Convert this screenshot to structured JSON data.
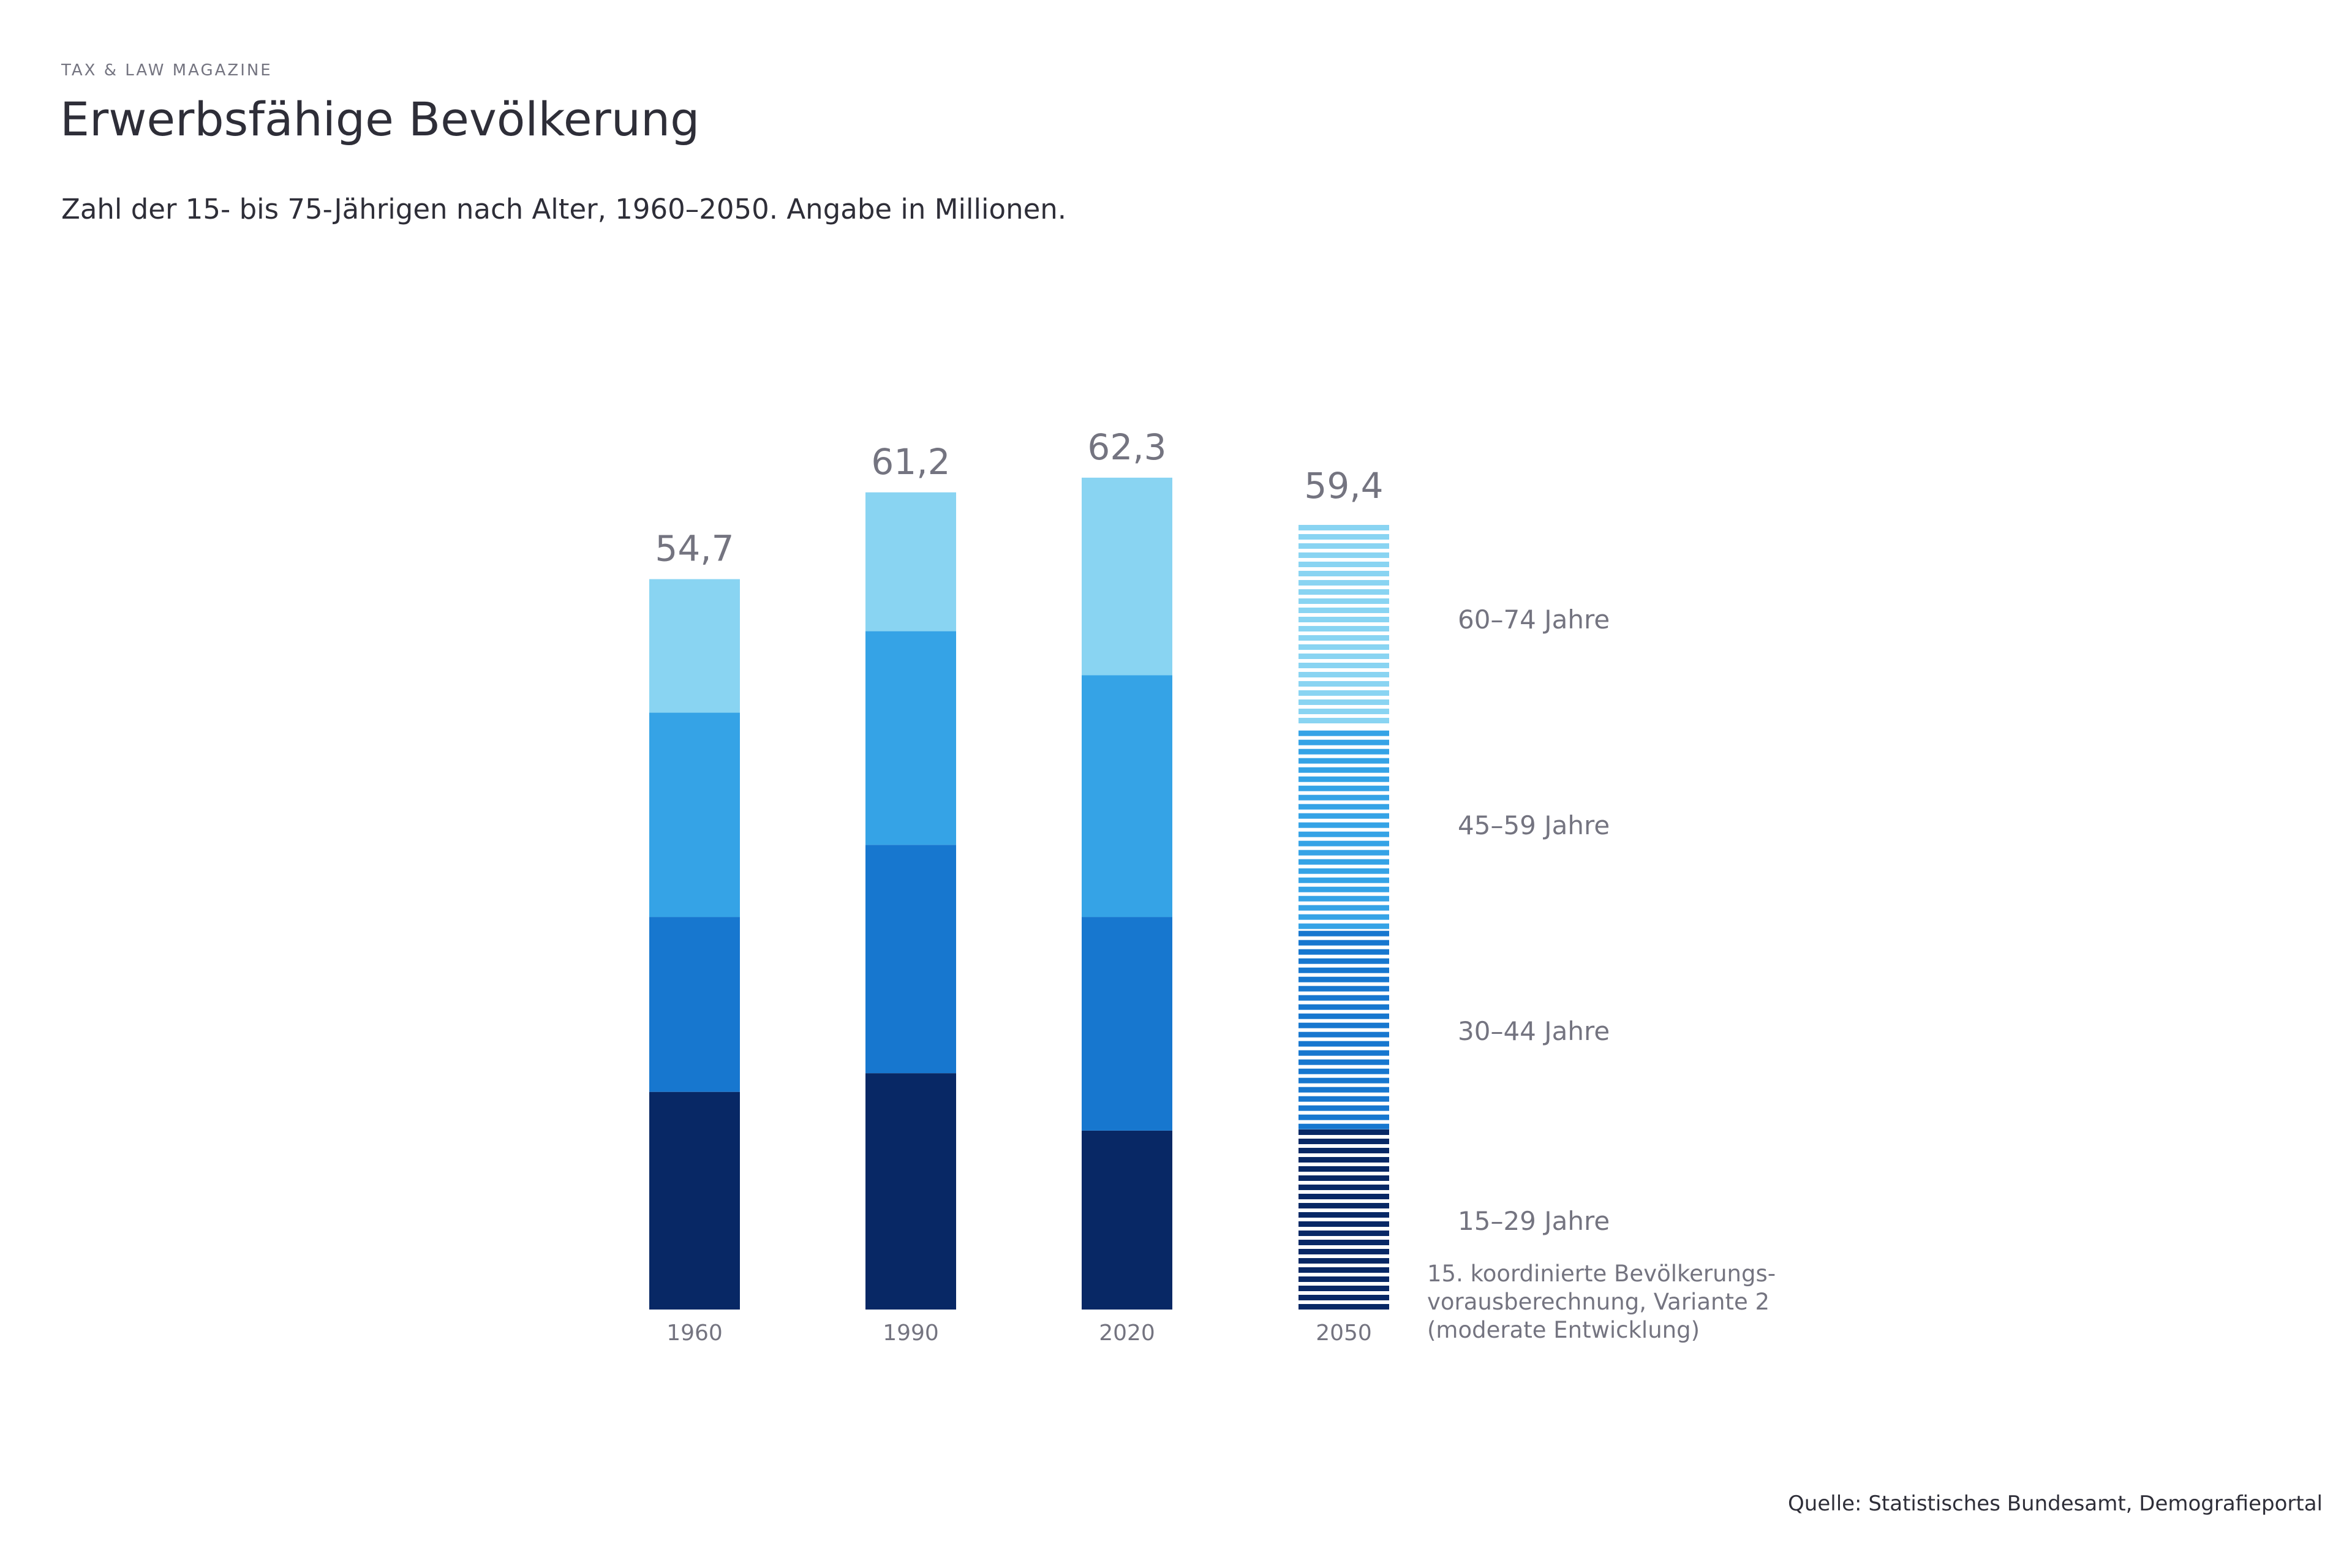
{
  "header": {
    "kicker": "TAX & LAW MAGAZINE",
    "title": "Erwerbsfähige Bevölkerung",
    "subtitle": "Zahl der 15- bis 75-Jährigen nach Alter, 1960–2050. Angabe in Millionen."
  },
  "source": "Quelle: Statistisches Bundesamt, Demografieportal",
  "colors": {
    "15-29": "#082865",
    "30-44": "#1777cf",
    "45-59": "#35a3e6",
    "60-74": "#89d4f2"
  },
  "chart_data": {
    "type": "bar",
    "stacked": true,
    "categories": [
      "1960",
      "1990",
      "2020",
      "2050"
    ],
    "totals": [
      "54,7",
      "61,2",
      "62,3",
      "59,4"
    ],
    "total_values": [
      54.7,
      61.2,
      62.3,
      59.4
    ],
    "series": [
      {
        "name": "15–29 Jahre",
        "key": "15-29",
        "values": [
          16.3,
          17.7,
          13.4,
          13.5
        ]
      },
      {
        "name": "30–44 Jahre",
        "key": "30-44",
        "values": [
          13.1,
          17.1,
          16.0,
          15.0
        ]
      },
      {
        "name": "45–59 Jahre",
        "key": "45-59",
        "values": [
          15.3,
          16.0,
          18.1,
          15.4
        ]
      },
      {
        "name": "60–74 Jahre",
        "key": "60-74",
        "values": [
          10.0,
          10.4,
          14.8,
          15.5
        ]
      }
    ],
    "striped_category": "2050",
    "note_lines": [
      "15. koordinierte Bevölkerungs-",
      "vorausberechnung, Variante 2",
      "(moderate Entwicklung)"
    ],
    "ylim": [
      0,
      70
    ],
    "legend_position": "right"
  }
}
